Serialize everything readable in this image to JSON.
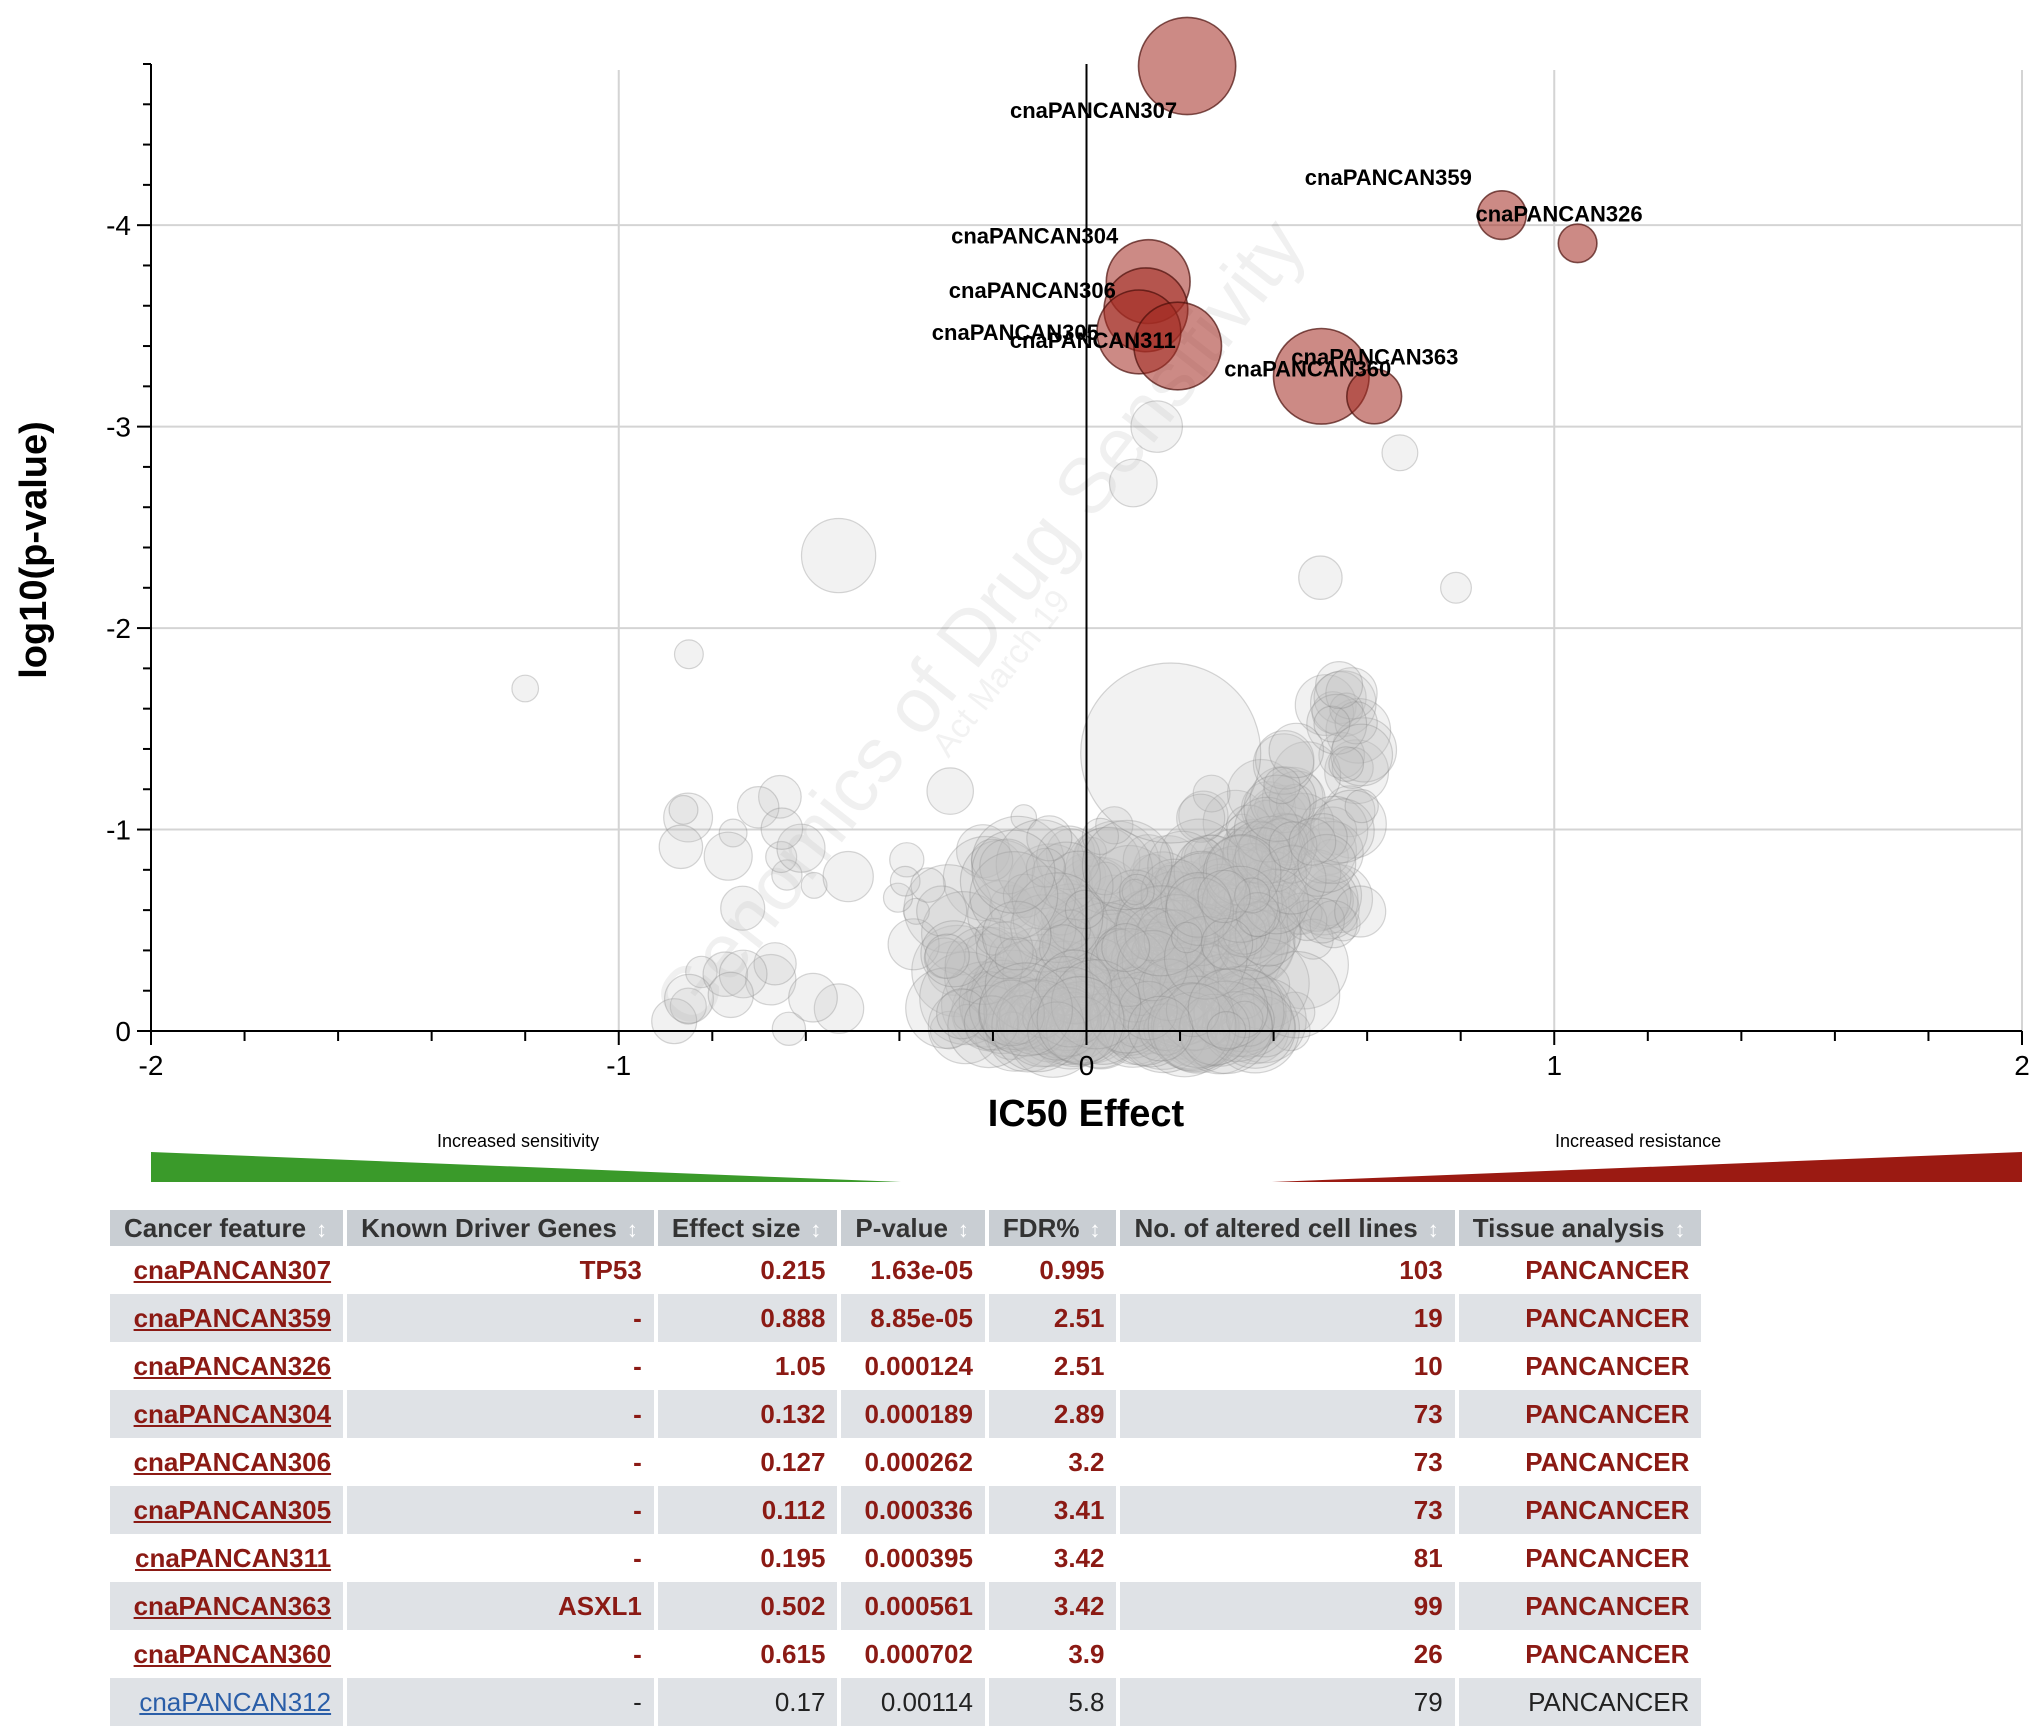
{
  "chart_data": {
    "type": "scatter",
    "xlabel": "IC50 Effect",
    "ylabel": "log10(p-value)",
    "xlim": [
      -2,
      2
    ],
    "ylim": [
      0,
      -4.8
    ],
    "xticks": [
      "-2",
      "-1",
      "0",
      "1",
      "2"
    ],
    "yticks": [
      "0",
      "-1",
      "-2",
      "-3",
      "-4"
    ],
    "grid": true,
    "watermark": "Genomics of Drug Sensitivity",
    "watermark_sub": "Act March 19",
    "highlighted": [
      {
        "label": "cnaPANCAN307",
        "x": 0.215,
        "y": -4.79,
        "size": 103
      },
      {
        "label": "cnaPANCAN359",
        "x": 0.888,
        "y": -4.05,
        "size": 19
      },
      {
        "label": "cnaPANCAN326",
        "x": 1.05,
        "y": -3.91,
        "size": 10
      },
      {
        "label": "cnaPANCAN304",
        "x": 0.132,
        "y": -3.72,
        "size": 73
      },
      {
        "label": "cnaPANCAN306",
        "x": 0.127,
        "y": -3.58,
        "size": 73
      },
      {
        "label": "cnaPANCAN305",
        "x": 0.112,
        "y": -3.47,
        "size": 73
      },
      {
        "label": "cnaPANCAN311",
        "x": 0.195,
        "y": -3.4,
        "size": 81
      },
      {
        "label": "cnaPANCAN363",
        "x": 0.502,
        "y": -3.25,
        "size": 99
      },
      {
        "label": "cnaPANCAN360",
        "x": 0.615,
        "y": -3.15,
        "size": 26
      }
    ]
  },
  "legend": {
    "sensitivity_label": "Increased sensitivity",
    "resistance_label": "Increased resistance",
    "sensitivity_color": "#3a9a2a",
    "resistance_color": "#9b1a12"
  },
  "table": {
    "headers": [
      "Cancer feature",
      "Known Driver Genes",
      "Effect size",
      "P-value",
      "FDR%",
      "No. of altered cell lines",
      "Tissue analysis"
    ],
    "sort_icon": "↕",
    "rows": [
      {
        "feature": "cnaPANCAN307",
        "genes": "TP53",
        "effect": "0.215",
        "pvalue": "1.63e-05",
        "fdr": "0.995",
        "cells": "103",
        "tissue": "PANCANCER",
        "sig": true
      },
      {
        "feature": "cnaPANCAN359",
        "genes": "-",
        "effect": "0.888",
        "pvalue": "8.85e-05",
        "fdr": "2.51",
        "cells": "19",
        "tissue": "PANCANCER",
        "sig": true
      },
      {
        "feature": "cnaPANCAN326",
        "genes": "-",
        "effect": "1.05",
        "pvalue": "0.000124",
        "fdr": "2.51",
        "cells": "10",
        "tissue": "PANCANCER",
        "sig": true
      },
      {
        "feature": "cnaPANCAN304",
        "genes": "-",
        "effect": "0.132",
        "pvalue": "0.000189",
        "fdr": "2.89",
        "cells": "73",
        "tissue": "PANCANCER",
        "sig": true
      },
      {
        "feature": "cnaPANCAN306",
        "genes": "-",
        "effect": "0.127",
        "pvalue": "0.000262",
        "fdr": "3.2",
        "cells": "73",
        "tissue": "PANCANCER",
        "sig": true
      },
      {
        "feature": "cnaPANCAN305",
        "genes": "-",
        "effect": "0.112",
        "pvalue": "0.000336",
        "fdr": "3.41",
        "cells": "73",
        "tissue": "PANCANCER",
        "sig": true
      },
      {
        "feature": "cnaPANCAN311",
        "genes": "-",
        "effect": "0.195",
        "pvalue": "0.000395",
        "fdr": "3.42",
        "cells": "81",
        "tissue": "PANCANCER",
        "sig": true
      },
      {
        "feature": "cnaPANCAN363",
        "genes": "ASXL1",
        "effect": "0.502",
        "pvalue": "0.000561",
        "fdr": "3.42",
        "cells": "99",
        "tissue": "PANCANCER",
        "sig": true
      },
      {
        "feature": "cnaPANCAN360",
        "genes": "-",
        "effect": "0.615",
        "pvalue": "0.000702",
        "fdr": "3.9",
        "cells": "26",
        "tissue": "PANCANCER",
        "sig": true
      },
      {
        "feature": "cnaPANCAN312",
        "genes": "-",
        "effect": "0.17",
        "pvalue": "0.00114",
        "fdr": "5.8",
        "cells": "79",
        "tissue": "PANCANCER",
        "sig": false
      }
    ]
  }
}
